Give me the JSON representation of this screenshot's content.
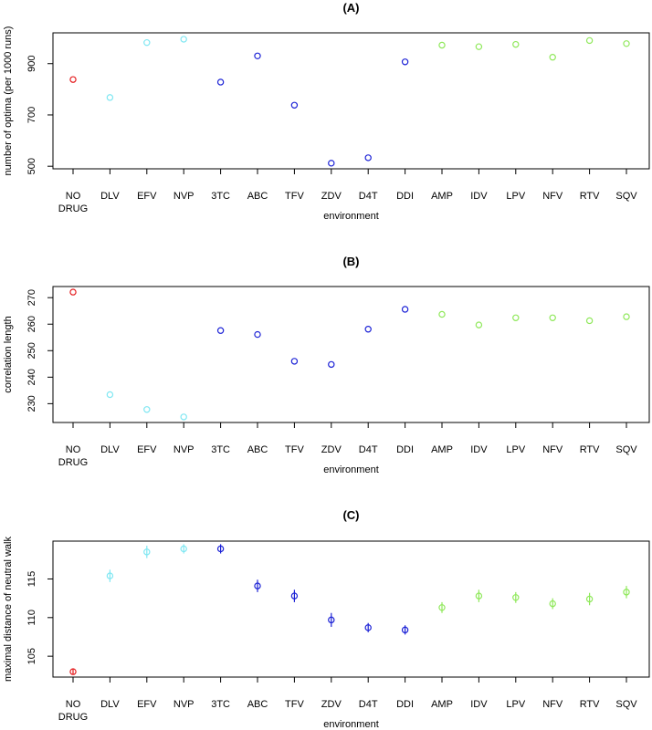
{
  "colors": {
    "no_drug": "#e41a1c",
    "nnrti": "#7fe7f2",
    "nrti": "#1c22d6",
    "pi": "#8fe85a"
  },
  "chart_data": [
    {
      "type": "scatter",
      "title": "(A)",
      "xlabel": "environment",
      "ylabel": "number of optima (per 1000 runs)",
      "categories": [
        "NO\nDRUG",
        "DLV",
        "EFV",
        "NVP",
        "3TC",
        "ABC",
        "TFV",
        "ZDV",
        "D4T",
        "DDI",
        "AMP",
        "IDV",
        "LPV",
        "NFV",
        "RTV",
        "SQV"
      ],
      "groups": [
        "no_drug",
        "nnrti",
        "nnrti",
        "nnrti",
        "nrti",
        "nrti",
        "nrti",
        "nrti",
        "nrti",
        "nrti",
        "pi",
        "pi",
        "pi",
        "pi",
        "pi",
        "pi"
      ],
      "values": [
        838,
        768,
        982,
        995,
        828,
        930,
        738,
        512,
        533,
        907,
        972,
        966,
        975,
        925,
        990,
        978
      ],
      "ylim": [
        490,
        1020
      ],
      "yticks": [
        500,
        700,
        900
      ],
      "error_bars": false
    },
    {
      "type": "scatter",
      "title": "(B)",
      "xlabel": "environment",
      "ylabel": "correlation length",
      "categories": [
        "NO\nDRUG",
        "DLV",
        "EFV",
        "NVP",
        "3TC",
        "ABC",
        "TFV",
        "ZDV",
        "D4T",
        "DDI",
        "AMP",
        "IDV",
        "LPV",
        "NFV",
        "RTV",
        "SQV"
      ],
      "groups": [
        "no_drug",
        "nnrti",
        "nnrti",
        "nnrti",
        "nrti",
        "nrti",
        "nrti",
        "nrti",
        "nrti",
        "nrti",
        "pi",
        "pi",
        "pi",
        "pi",
        "pi",
        "pi"
      ],
      "values": [
        272.1,
        233.4,
        227.8,
        225.0,
        257.6,
        256.1,
        246.0,
        244.8,
        258.1,
        265.6,
        263.7,
        259.7,
        262.4,
        262.4,
        261.3,
        262.8
      ],
      "ylim": [
        222.9,
        274.2
      ],
      "yticks": [
        230,
        240,
        250,
        260,
        270
      ],
      "error_bars": false
    },
    {
      "type": "scatter",
      "title": "(C)",
      "xlabel": "environment",
      "ylabel": "maximal distance of neutral walk",
      "categories": [
        "NO\nDRUG",
        "DLV",
        "EFV",
        "NVP",
        "3TC",
        "ABC",
        "TFV",
        "ZDV",
        "D4T",
        "DDI",
        "AMP",
        "IDV",
        "LPV",
        "NFV",
        "RTV",
        "SQV"
      ],
      "groups": [
        "no_drug",
        "nnrti",
        "nnrti",
        "nnrti",
        "nrti",
        "nrti",
        "nrti",
        "nrti",
        "nrti",
        "nrti",
        "pi",
        "pi",
        "pi",
        "pi",
        "pi",
        "pi"
      ],
      "values": [
        103.0,
        115.4,
        118.5,
        118.9,
        118.9,
        114.1,
        112.8,
        109.7,
        108.7,
        108.4,
        111.3,
        112.8,
        112.6,
        111.8,
        112.4,
        113.3
      ],
      "errors": [
        0.4,
        0.8,
        0.8,
        0.6,
        0.6,
        0.8,
        0.8,
        0.9,
        0.6,
        0.6,
        0.7,
        0.8,
        0.7,
        0.7,
        0.8,
        0.8
      ],
      "ylim": [
        102.3,
        119.9
      ],
      "yticks": [
        105,
        110,
        115
      ],
      "error_bars": true
    }
  ]
}
